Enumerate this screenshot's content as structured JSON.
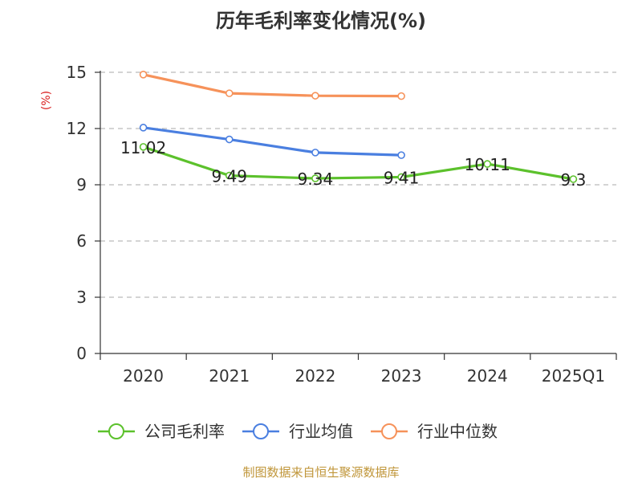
{
  "chart_data": {
    "type": "line",
    "title": "历年毛利率变化情况(%)",
    "ylabel": "(%)",
    "xlabel": "",
    "categories": [
      "2020",
      "2021",
      "2022",
      "2023",
      "2024",
      "2025Q1"
    ],
    "ylim": [
      0,
      15
    ],
    "yticks": [
      "0",
      "3",
      "6",
      "9",
      "12",
      "15"
    ],
    "grid": true,
    "legend_position": "bottom",
    "series": [
      {
        "name": "公司毛利率",
        "color": "#5cc12c",
        "values": [
          11.02,
          9.49,
          9.34,
          9.41,
          10.11,
          9.3
        ],
        "labels": [
          "11.02",
          "9.49",
          "9.34",
          "9.41",
          "10.11",
          "9.3"
        ]
      },
      {
        "name": "行业均值",
        "color": "#4a7fe0",
        "values": [
          12.05,
          11.42,
          10.72,
          10.58,
          null,
          null
        ]
      },
      {
        "name": "行业中位数",
        "color": "#f6925a",
        "values": [
          14.88,
          13.88,
          13.75,
          13.73,
          null,
          null
        ]
      }
    ]
  },
  "source": "制图数据来自恒生聚源数据库",
  "colors": {
    "axis": "#333333",
    "grid": "#bbbbbb",
    "ylabel": "#d91f1f",
    "source": "#c0963a",
    "title": "#333333"
  }
}
